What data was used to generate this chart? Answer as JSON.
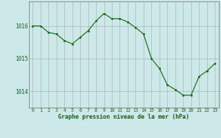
{
  "hours": [
    0,
    1,
    2,
    3,
    4,
    5,
    6,
    7,
    8,
    9,
    10,
    11,
    12,
    13,
    14,
    15,
    16,
    17,
    18,
    19,
    20,
    21,
    22,
    23
  ],
  "pressure": [
    1016.0,
    1016.0,
    1015.8,
    1015.75,
    1015.55,
    1015.45,
    1015.65,
    1015.85,
    1016.15,
    1016.38,
    1016.22,
    1016.22,
    1016.12,
    1015.95,
    1015.75,
    1015.0,
    1014.7,
    1014.2,
    1014.05,
    1013.88,
    1013.88,
    1014.45,
    1014.62,
    1014.85
  ],
  "line_color": "#1a6b1a",
  "marker_color": "#1a6b1a",
  "bg_color": "#cce8e8",
  "grid_color": "#b0b0b0",
  "xlabel": "Graphe pression niveau de la mer (hPa)",
  "xlabel_color": "#1a5c1a",
  "yticks": [
    1014,
    1015,
    1016
  ],
  "ylim": [
    1013.5,
    1016.75
  ],
  "xlim": [
    -0.5,
    23.5
  ],
  "tick_color": "#1a5c1a"
}
